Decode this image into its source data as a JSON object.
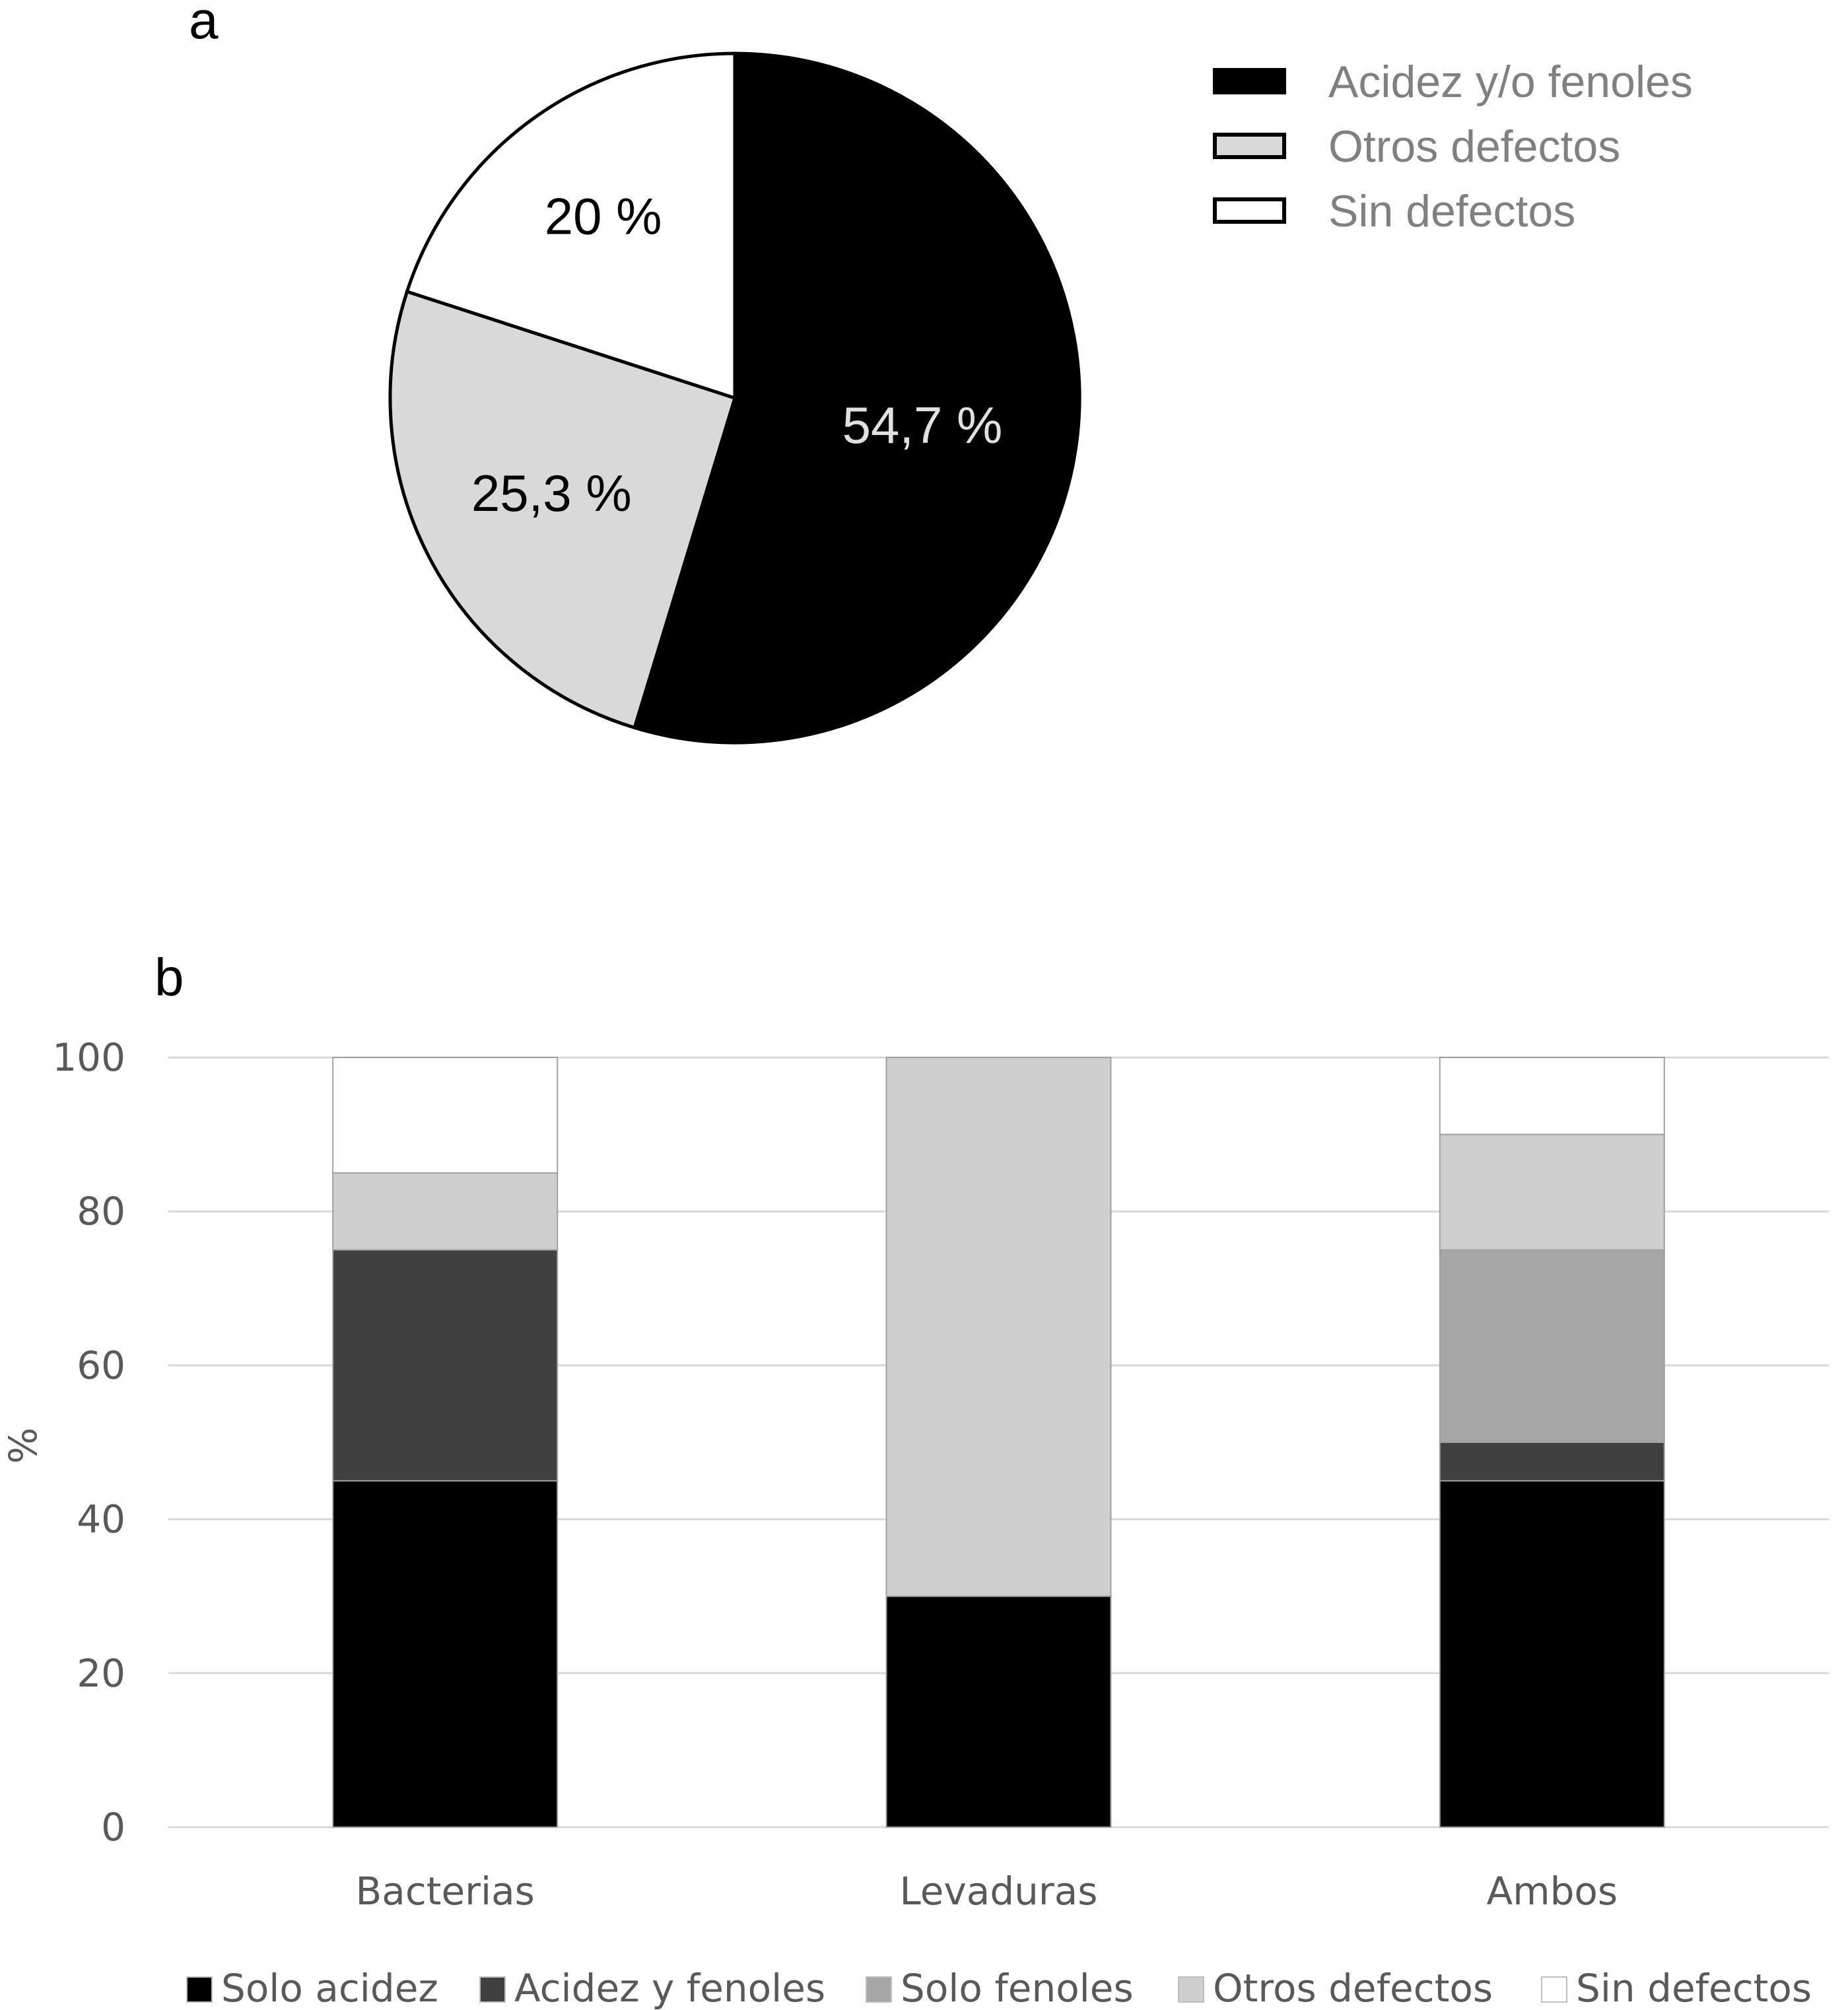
{
  "chart_data": [
    {
      "panel": "a",
      "type": "pie",
      "slices": [
        {
          "name": "Acidez y/o fenoles",
          "value": 54.7,
          "label": "54,7 %",
          "color": "#000000",
          "label_color": "#e0e0e0"
        },
        {
          "name": "Otros defectos",
          "value": 25.3,
          "label": "25,3 %",
          "color": "#d9d9d9",
          "label_color": "#000000"
        },
        {
          "name": "Sin defectos",
          "value": 20,
          "label": "20 %",
          "color": "#ffffff",
          "label_color": "#000000"
        }
      ],
      "legend_position": "top-right"
    },
    {
      "panel": "b",
      "type": "bar",
      "stacked": true,
      "categories": [
        "Bacterias",
        "Levaduras",
        "Ambos"
      ],
      "series": [
        {
          "name": "Solo acidez",
          "color": "#000000",
          "values": [
            45,
            30,
            45
          ]
        },
        {
          "name": "Acidez y fenoles",
          "color": "#404040",
          "values": [
            30,
            0,
            5
          ]
        },
        {
          "name": "Solo fenoles",
          "color": "#a6a6a6",
          "values": [
            0,
            0,
            25
          ]
        },
        {
          "name": "Otros defectos",
          "color": "#d0cfd0",
          "values": [
            10,
            70,
            15
          ]
        },
        {
          "name": "Sin defectos",
          "color": "#ffffff",
          "values": [
            15,
            0,
            10
          ]
        }
      ],
      "ylabel": "%",
      "ylim": [
        0,
        100
      ],
      "yticks": [
        0,
        20,
        40,
        60,
        80,
        100
      ],
      "grid": true,
      "legend_position": "bottom"
    }
  ]
}
